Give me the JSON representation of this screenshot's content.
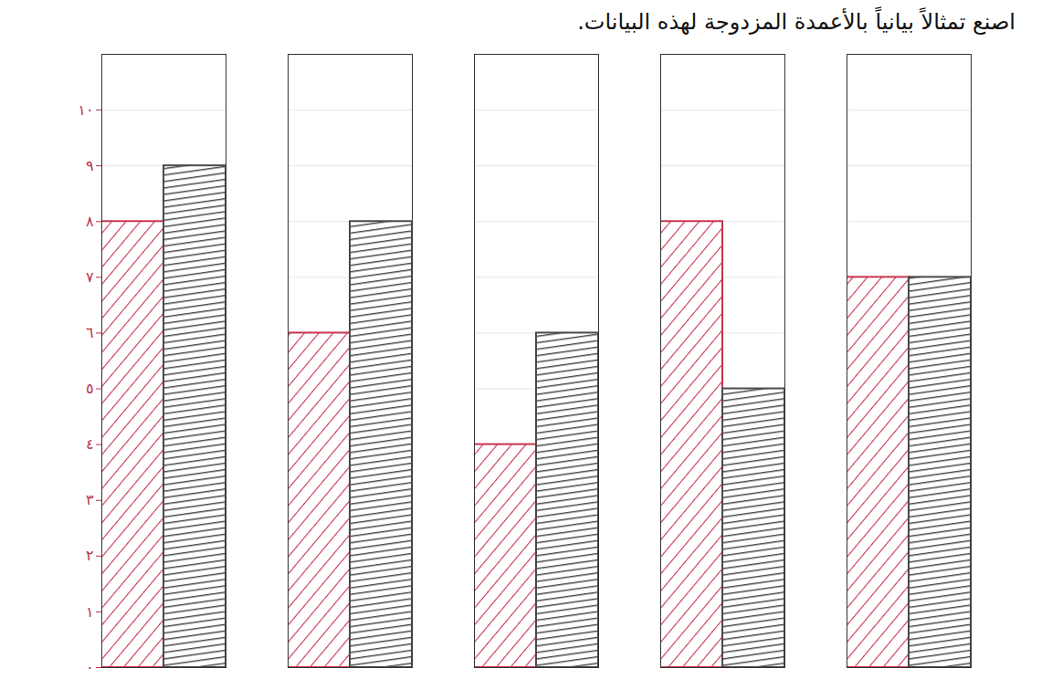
{
  "chart_data": {
    "type": "bar",
    "title": "اصنع تمثالاً بيانياً بالأعمدة المزدوجة لهذه البيانات.",
    "categories": [
      null,
      null,
      null,
      null,
      null
    ],
    "series": [
      {
        "color": "#c8344e",
        "values": [
          8,
          6,
          4,
          8,
          7
        ]
      },
      {
        "color": "#4a4a4a",
        "values": [
          9,
          8,
          6,
          5,
          7
        ]
      }
    ],
    "ylim": [
      0,
      11
    ],
    "yticks": [
      {
        "value": 0,
        "label": "٠"
      },
      {
        "value": 1,
        "label": "١"
      },
      {
        "value": 2,
        "label": "٢"
      },
      {
        "value": 3,
        "label": "٣"
      },
      {
        "value": 4,
        "label": "٤"
      },
      {
        "value": 5,
        "label": "٥"
      },
      {
        "value": 6,
        "label": "٦"
      },
      {
        "value": 7,
        "label": "٧"
      },
      {
        "value": 8,
        "label": "٨"
      },
      {
        "value": 9,
        "label": "٩"
      },
      {
        "value": 10,
        "label": "١٠"
      }
    ],
    "grid": true
  }
}
